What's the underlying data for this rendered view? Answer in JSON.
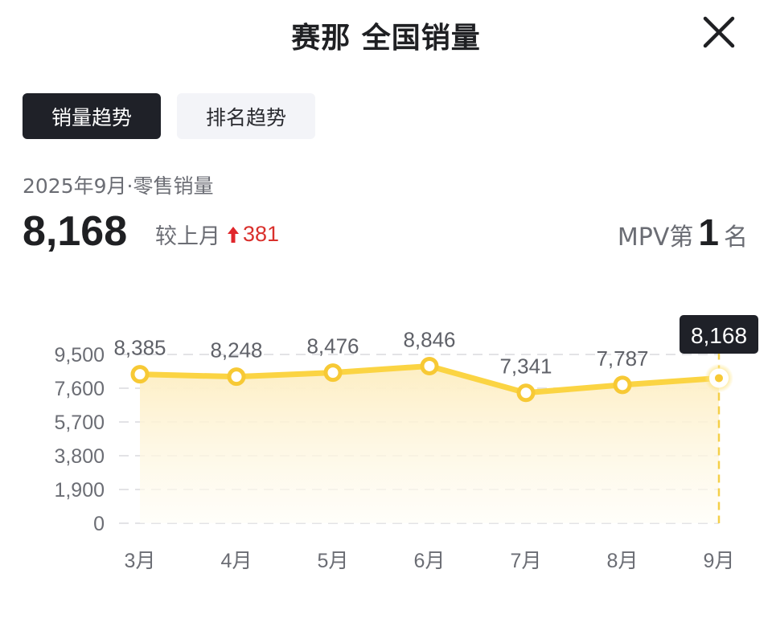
{
  "header": {
    "title": "赛那 全国销量",
    "close_icon": "close-icon"
  },
  "tabs": [
    {
      "label": "销量趋势",
      "active": true
    },
    {
      "label": "排名趋势",
      "active": false
    }
  ],
  "summary": {
    "period_label": "2025年9月·零售销量",
    "value": "8,168",
    "compare_label": "较上月",
    "delta_direction": "up",
    "delta": "381",
    "rank_prefix": "MPV第",
    "rank_number": "1",
    "rank_suffix": "名"
  },
  "colors": {
    "line": "#fbd443",
    "marker_stroke": "#f7c935",
    "fill_top": "#fdeec3",
    "active_tab_bg": "#1f2128",
    "inactive_tab_bg": "#f3f4f8",
    "delta_up": "#d9302c",
    "tooltip_bg": "#1f2128"
  },
  "chart_data": {
    "type": "area",
    "title": "",
    "xlabel": "",
    "ylabel": "",
    "categories": [
      "3月",
      "4月",
      "5月",
      "6月",
      "7月",
      "8月",
      "9月"
    ],
    "series": [
      {
        "name": "零售销量",
        "values": [
          8385,
          8248,
          8476,
          8846,
          7341,
          7787,
          8168
        ]
      }
    ],
    "data_labels": [
      "8,385",
      "8,248",
      "8,476",
      "8,846",
      "7,341",
      "7,787",
      "8,168"
    ],
    "y_ticks": [
      "0",
      "1,900",
      "3,800",
      "5,700",
      "7,600",
      "9,500"
    ],
    "y_tick_values": [
      0,
      1900,
      3800,
      5700,
      7600,
      9500
    ],
    "ylim": [
      0,
      9500
    ],
    "grid": "dashed horizontal",
    "legend": "none",
    "highlighted_point": {
      "category": "9月",
      "label": "8,168"
    }
  }
}
